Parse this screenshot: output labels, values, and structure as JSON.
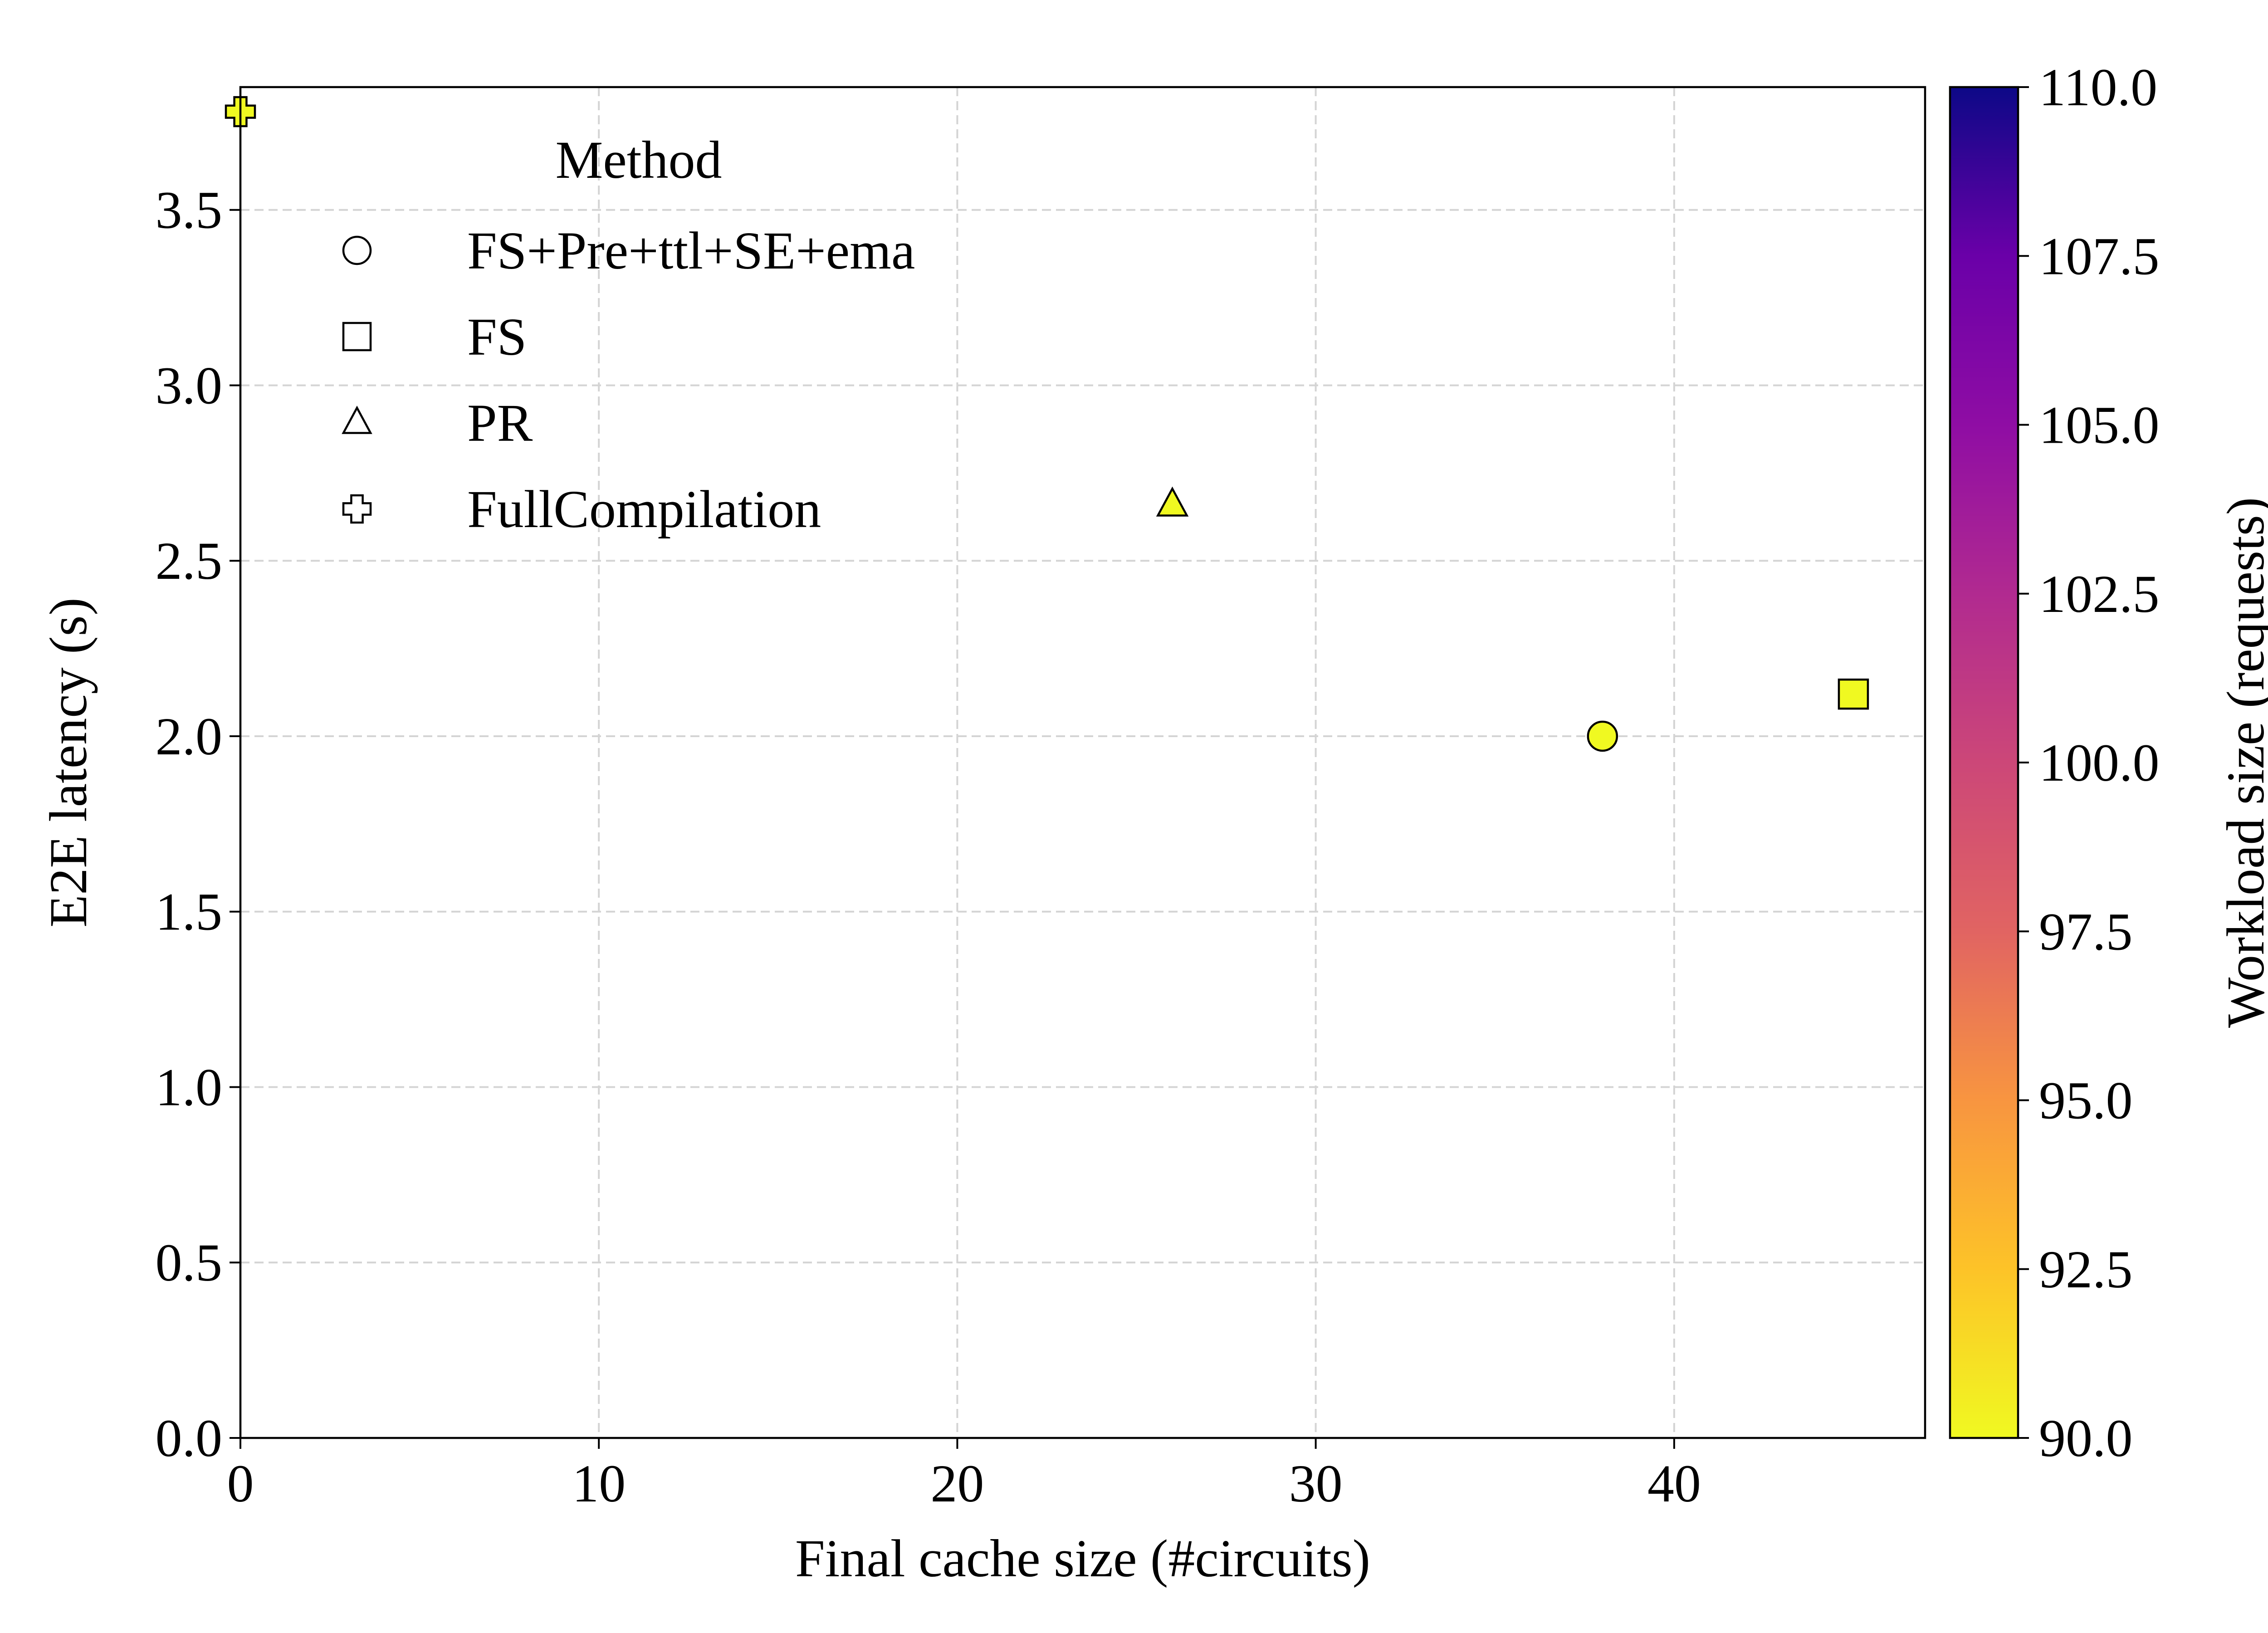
{
  "chart_data": {
    "type": "scatter",
    "title": "",
    "xlabel": "Final cache size (#circuits)",
    "ylabel": "E2E latency (s)",
    "xlim": [
      0,
      47
    ],
    "ylim": [
      0,
      3.85
    ],
    "xticks": [
      "0",
      "10",
      "20",
      "30",
      "40"
    ],
    "yticks": [
      "0.0",
      "0.5",
      "1.0",
      "1.5",
      "2.0",
      "2.5",
      "3.0",
      "3.5"
    ],
    "grid": true,
    "colorbar": {
      "label": "Workload size (requests)",
      "range": [
        90,
        110
      ],
      "colormap": "plasma",
      "ticks": [
        "90.0",
        "92.5",
        "95.0",
        "97.5",
        "100.0",
        "102.5",
        "105.0",
        "107.5",
        "110.0"
      ]
    },
    "legend": {
      "title": "Method",
      "position": "upper-left"
    },
    "series": [
      {
        "name": "FS+Pre+ttl+SE+ema",
        "marker": "circle",
        "points": [
          {
            "x": 38,
            "y": 2.0,
            "workload": 90
          }
        ]
      },
      {
        "name": "FS",
        "marker": "square",
        "points": [
          {
            "x": 45,
            "y": 2.12,
            "workload": 90
          }
        ]
      },
      {
        "name": "PR",
        "marker": "triangle",
        "points": [
          {
            "x": 26,
            "y": 2.66,
            "workload": 90
          }
        ]
      },
      {
        "name": "FullCompilation",
        "marker": "plus",
        "points": [
          {
            "x": 0,
            "y": 3.78,
            "workload": 90
          }
        ]
      }
    ]
  }
}
